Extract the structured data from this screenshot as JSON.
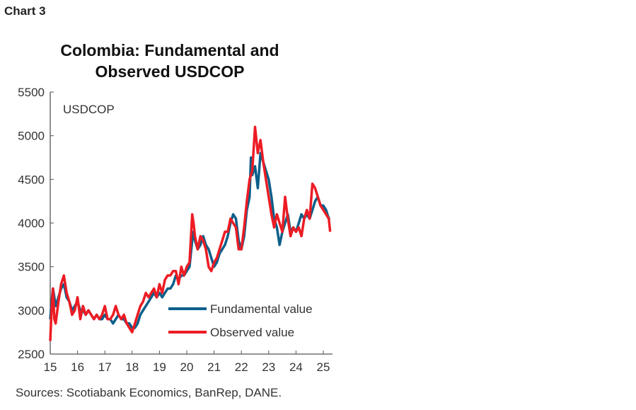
{
  "header": "Chart 3",
  "chart_data": {
    "type": "line",
    "title": "Colombia: Fundamental and Observed USDCOP",
    "title_lines": [
      "Colombia: Fundamental and",
      "Observed USDCOP"
    ],
    "ylabel": "USDCOP",
    "xlabel": "",
    "ylim": [
      2500,
      5500
    ],
    "yticks": [
      2500,
      3000,
      3500,
      4000,
      4500,
      5000,
      5500
    ],
    "xlim": [
      2015,
      2025.25
    ],
    "xticks": [
      2015,
      2016,
      2017,
      2018,
      2019,
      2020,
      2021,
      2022,
      2023,
      2024,
      2025
    ],
    "xtick_labels": [
      "15",
      "16",
      "17",
      "18",
      "19",
      "20",
      "21",
      "22",
      "23",
      "24",
      "25"
    ],
    "legend_position": "bottom-right",
    "grid": false,
    "series": [
      {
        "name": "Fundamental value",
        "color": "#0b5f8a",
        "x": [
          2015.0,
          2015.05,
          2015.1,
          2015.15,
          2015.2,
          2015.3,
          2015.4,
          2015.5,
          2015.6,
          2015.7,
          2015.8,
          2015.9,
          2016.0,
          2016.1,
          2016.2,
          2016.3,
          2016.4,
          2016.5,
          2016.6,
          2016.7,
          2016.8,
          2016.9,
          2017.0,
          2017.1,
          2017.2,
          2017.3,
          2017.4,
          2017.5,
          2017.6,
          2017.7,
          2017.8,
          2017.9,
          2018.0,
          2018.1,
          2018.2,
          2018.3,
          2018.4,
          2018.5,
          2018.6,
          2018.7,
          2018.8,
          2018.9,
          2019.0,
          2019.1,
          2019.2,
          2019.3,
          2019.4,
          2019.5,
          2019.6,
          2019.7,
          2019.8,
          2019.9,
          2020.0,
          2020.1,
          2020.2,
          2020.25,
          2020.3,
          2020.4,
          2020.5,
          2020.6,
          2020.7,
          2020.8,
          2020.9,
          2021.0,
          2021.1,
          2021.2,
          2021.3,
          2021.4,
          2021.5,
          2021.6,
          2021.7,
          2021.8,
          2021.9,
          2022.0,
          2022.1,
          2022.2,
          2022.3,
          2022.35,
          2022.4,
          2022.5,
          2022.6,
          2022.7,
          2022.8,
          2022.9,
          2023.0,
          2023.1,
          2023.2,
          2023.3,
          2023.4,
          2023.5,
          2023.6,
          2023.7,
          2023.8,
          2023.9,
          2024.0,
          2024.1,
          2024.2,
          2024.3,
          2024.4,
          2024.5,
          2024.6,
          2024.7,
          2024.8,
          2024.9,
          2025.0,
          2025.1,
          2025.2,
          2025.25
        ],
        "values": [
          2900,
          3100,
          3250,
          3150,
          3050,
          3150,
          3250,
          3300,
          3150,
          3100,
          3000,
          3050,
          3100,
          3000,
          3000,
          2950,
          3000,
          2950,
          2900,
          2950,
          2900,
          2900,
          2950,
          2900,
          2900,
          2850,
          2900,
          2950,
          2900,
          2900,
          2850,
          2850,
          2800,
          2800,
          2850,
          2950,
          3000,
          3050,
          3100,
          3150,
          3200,
          3150,
          3200,
          3150,
          3200,
          3250,
          3250,
          3300,
          3400,
          3350,
          3400,
          3400,
          3450,
          3500,
          3800,
          3900,
          3800,
          3700,
          3750,
          3850,
          3750,
          3700,
          3600,
          3500,
          3550,
          3650,
          3700,
          3750,
          3850,
          4000,
          4100,
          4050,
          3800,
          3700,
          3850,
          4150,
          4300,
          4750,
          4550,
          4650,
          4400,
          4800,
          4700,
          4600,
          4500,
          4300,
          4050,
          3950,
          3750,
          3900,
          4000,
          4100,
          3900,
          3950,
          3900,
          4000,
          4100,
          4050,
          4100,
          4050,
          4150,
          4250,
          4300,
          4200,
          4200,
          4150,
          4050,
          4050
        ]
      },
      {
        "name": "Observed value",
        "color": "#ec1c24",
        "x": [
          2015.0,
          2015.05,
          2015.1,
          2015.15,
          2015.2,
          2015.3,
          2015.4,
          2015.5,
          2015.6,
          2015.7,
          2015.8,
          2015.9,
          2016.0,
          2016.1,
          2016.2,
          2016.3,
          2016.4,
          2016.5,
          2016.6,
          2016.7,
          2016.8,
          2016.9,
          2017.0,
          2017.1,
          2017.2,
          2017.3,
          2017.4,
          2017.5,
          2017.6,
          2017.7,
          2017.8,
          2017.9,
          2018.0,
          2018.1,
          2018.2,
          2018.3,
          2018.4,
          2018.5,
          2018.6,
          2018.7,
          2018.8,
          2018.9,
          2019.0,
          2019.1,
          2019.2,
          2019.3,
          2019.4,
          2019.5,
          2019.6,
          2019.7,
          2019.8,
          2019.9,
          2020.0,
          2020.1,
          2020.2,
          2020.25,
          2020.3,
          2020.4,
          2020.5,
          2020.6,
          2020.7,
          2020.8,
          2020.9,
          2021.0,
          2021.1,
          2021.2,
          2021.3,
          2021.4,
          2021.5,
          2021.6,
          2021.7,
          2021.8,
          2021.9,
          2022.0,
          2022.1,
          2022.2,
          2022.3,
          2022.35,
          2022.4,
          2022.5,
          2022.6,
          2022.7,
          2022.8,
          2022.9,
          2023.0,
          2023.1,
          2023.2,
          2023.3,
          2023.4,
          2023.5,
          2023.6,
          2023.7,
          2023.8,
          2023.9,
          2024.0,
          2024.1,
          2024.2,
          2024.3,
          2024.4,
          2024.5,
          2024.6,
          2024.7,
          2024.8,
          2024.9,
          2025.0,
          2025.1,
          2025.2,
          2025.25
        ],
        "values": [
          2650,
          3000,
          3250,
          2900,
          2850,
          3100,
          3300,
          3400,
          3200,
          3100,
          2950,
          3000,
          3150,
          2900,
          3050,
          2950,
          3000,
          2950,
          2900,
          2950,
          2900,
          2950,
          3050,
          2900,
          2900,
          2950,
          3050,
          2950,
          2900,
          2950,
          2850,
          2800,
          2750,
          2850,
          2950,
          3050,
          3100,
          3200,
          3150,
          3200,
          3250,
          3150,
          3300,
          3200,
          3350,
          3400,
          3400,
          3450,
          3450,
          3300,
          3500,
          3400,
          3500,
          3550,
          4100,
          4000,
          3850,
          3700,
          3850,
          3800,
          3700,
          3500,
          3450,
          3550,
          3600,
          3700,
          3800,
          3900,
          3900,
          4050,
          4000,
          3950,
          3700,
          3700,
          3950,
          4250,
          4500,
          4550,
          4600,
          5100,
          4800,
          4950,
          4700,
          4500,
          4300,
          4100,
          3950,
          4100,
          4000,
          3900,
          4300,
          4050,
          3850,
          3950,
          3900,
          3950,
          3850,
          4050,
          4150,
          4050,
          4450,
          4400,
          4300,
          4200,
          4150,
          4100,
          4050,
          3900
        ]
      }
    ]
  },
  "source": "Sources: Scotiabank Economics, BanRep, DANE."
}
